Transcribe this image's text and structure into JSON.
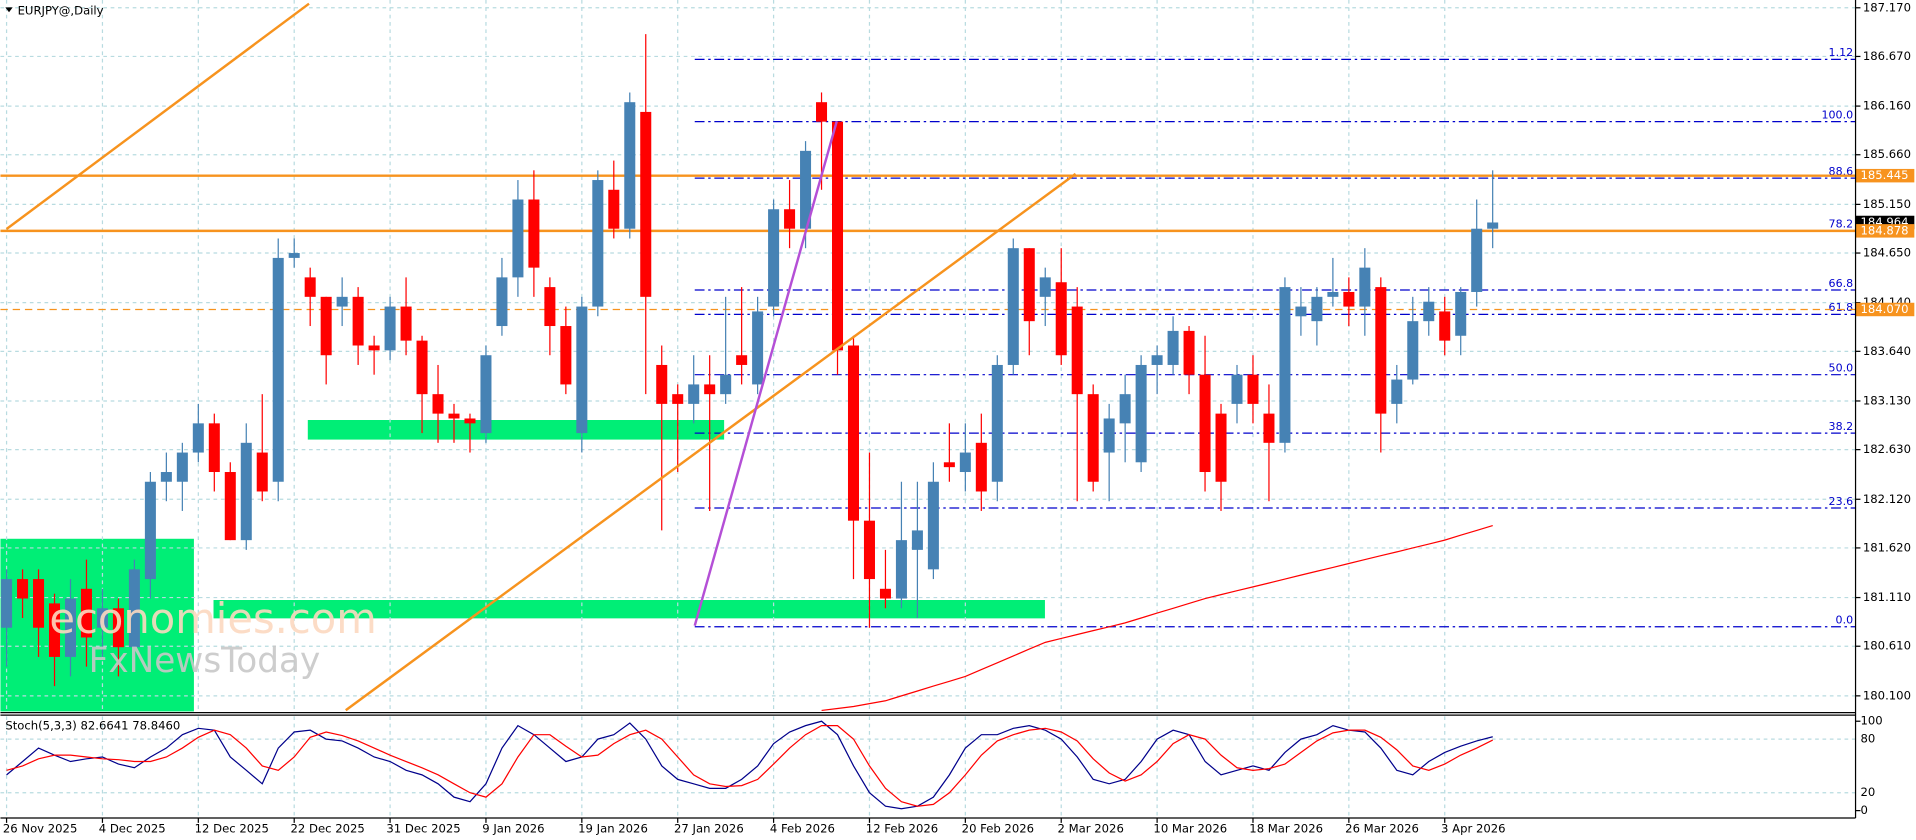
{
  "chart_data": {
    "type": "candlestick",
    "title": "EURJPY@,Daily",
    "watermark": [
      "economies.com",
      "FxNewsToday"
    ],
    "categories": [
      "26 Nov 2025",
      null,
      null,
      null,
      null,
      null,
      "4 Dec 2025",
      null,
      null,
      null,
      null,
      null,
      "12 Dec 2025",
      null,
      null,
      null,
      null,
      null,
      "22 Dec 2025",
      null,
      null,
      null,
      null,
      null,
      "31 Dec 2025",
      null,
      null,
      null,
      null,
      null,
      "9 Jan 2026",
      null,
      null,
      null,
      null,
      null,
      "19 Jan 2026",
      null,
      null,
      null,
      null,
      null,
      "27 Jan 2026",
      null,
      null,
      null,
      null,
      null,
      "4 Feb 2026",
      null,
      null,
      null,
      null,
      null,
      "12 Feb 2026",
      null,
      null,
      null,
      null,
      null,
      "20 Feb 2026",
      null,
      null,
      null,
      null,
      null,
      "2 Mar 2026",
      null,
      null,
      null,
      null,
      null,
      "10 Mar 2026",
      null,
      null,
      null,
      null,
      null,
      "18 Mar 2026",
      null,
      null,
      null,
      null,
      null,
      "26 Mar 2026",
      null,
      null,
      null,
      null,
      null,
      "3 Apr 2026",
      null,
      null,
      null
    ],
    "open": [
      180.8,
      181.3,
      181.3,
      181.05,
      180.5,
      181.2,
      180.8,
      181.0,
      180.6,
      181.3,
      182.3,
      182.3,
      182.6,
      182.9,
      182.4,
      181.7,
      182.6,
      182.3,
      184.6,
      184.4,
      184.2,
      184.1,
      184.2,
      183.7,
      183.65,
      184.1,
      183.75,
      183.2,
      183.0,
      182.95,
      182.8,
      183.9,
      184.4,
      185.2,
      184.3,
      183.9,
      182.8,
      184.1,
      185.3,
      184.9,
      186.1,
      183.5,
      183.2,
      183.1,
      183.3,
      183.2,
      183.6,
      183.3,
      184.1,
      185.1,
      184.9,
      186.2,
      186.0,
      183.7,
      181.9,
      181.2,
      181.1,
      181.6,
      181.4,
      182.5,
      182.4,
      182.7,
      182.3,
      183.5,
      184.7,
      184.2,
      184.35,
      184.1,
      183.2,
      182.6,
      182.9,
      182.5,
      183.5,
      183.5,
      183.85,
      183.4,
      183.0,
      183.1,
      183.4,
      183.0,
      182.7,
      184.0,
      183.95,
      184.2,
      184.25,
      184.1,
      184.3,
      183.1,
      183.35,
      183.95,
      184.05,
      183.8,
      184.25,
      184.9
    ],
    "high": [
      181.4,
      181.4,
      181.4,
      181.15,
      181.3,
      181.5,
      181.2,
      181.1,
      181.5,
      182.4,
      182.6,
      182.7,
      183.1,
      183.0,
      182.5,
      182.9,
      183.2,
      184.8,
      184.8,
      184.5,
      184.2,
      184.4,
      184.3,
      183.8,
      184.2,
      184.4,
      183.8,
      183.5,
      183.1,
      183.0,
      183.7,
      184.6,
      185.4,
      185.5,
      184.4,
      184.1,
      184.2,
      185.5,
      185.6,
      186.3,
      186.9,
      183.7,
      183.3,
      183.6,
      183.6,
      184.2,
      184.3,
      184.2,
      185.2,
      185.4,
      185.8,
      186.3,
      186.0,
      183.8,
      182.6,
      181.6,
      182.3,
      182.3,
      182.5,
      182.9,
      182.9,
      183.0,
      183.6,
      184.8,
      184.7,
      184.5,
      184.7,
      184.3,
      183.3,
      183.1,
      183.4,
      183.6,
      183.7,
      184.0,
      183.9,
      183.8,
      183.1,
      183.5,
      183.6,
      183.3,
      184.4,
      184.3,
      184.3,
      184.6,
      184.4,
      184.7,
      184.4,
      183.5,
      184.2,
      184.3,
      184.2,
      184.3,
      185.2,
      185.5
    ],
    "low": [
      180.4,
      180.9,
      180.5,
      180.2,
      180.3,
      180.4,
      180.5,
      180.3,
      180.5,
      181.1,
      182.1,
      182.0,
      182.5,
      182.2,
      181.7,
      181.6,
      182.1,
      182.1,
      184.5,
      183.9,
      183.3,
      183.9,
      183.5,
      183.4,
      183.55,
      183.6,
      182.8,
      182.7,
      182.7,
      182.6,
      182.7,
      183.8,
      184.2,
      184.2,
      183.6,
      183.2,
      182.6,
      184.0,
      184.8,
      184.8,
      183.2,
      181.8,
      182.4,
      182.9,
      182.0,
      183.1,
      183.3,
      183.2,
      184.0,
      184.7,
      184.7,
      185.3,
      183.4,
      181.3,
      180.8,
      181.0,
      181.0,
      180.9,
      181.3,
      182.3,
      182.2,
      182.0,
      182.1,
      183.4,
      183.6,
      183.9,
      183.5,
      182.1,
      182.2,
      182.1,
      182.5,
      182.4,
      183.2,
      183.4,
      183.2,
      182.2,
      182.0,
      182.9,
      182.9,
      182.1,
      182.6,
      183.8,
      183.7,
      184.1,
      183.9,
      183.8,
      182.6,
      182.9,
      183.3,
      183.8,
      183.6,
      183.6,
      184.1,
      184.7
    ],
    "close": [
      181.3,
      181.1,
      180.8,
      180.5,
      181.1,
      180.7,
      181.0,
      180.6,
      181.4,
      182.3,
      182.4,
      182.6,
      182.9,
      182.4,
      181.7,
      182.7,
      182.2,
      184.6,
      184.65,
      184.2,
      183.6,
      184.2,
      183.7,
      183.65,
      184.1,
      183.75,
      183.2,
      183.0,
      182.95,
      182.9,
      183.6,
      184.4,
      185.2,
      184.5,
      183.9,
      183.3,
      184.1,
      185.4,
      184.9,
      186.2,
      184.2,
      183.1,
      183.1,
      183.3,
      183.2,
      183.4,
      183.5,
      184.05,
      185.1,
      184.9,
      185.7,
      186.0,
      183.65,
      181.9,
      181.3,
      181.1,
      181.7,
      181.8,
      182.3,
      182.45,
      182.6,
      182.2,
      183.5,
      184.7,
      183.95,
      184.4,
      183.6,
      183.2,
      182.3,
      182.95,
      183.2,
      183.5,
      183.6,
      183.85,
      183.4,
      182.4,
      182.3,
      183.4,
      183.1,
      182.7,
      184.3,
      184.1,
      184.2,
      184.25,
      184.1,
      184.5,
      183.0,
      183.35,
      183.95,
      184.15,
      183.75,
      184.25,
      184.9,
      184.964
    ],
    "up_color": "#4682b4",
    "down_color": "#ff0000",
    "ma": {
      "color": "#ff0000",
      "values": [
        null,
        null,
        null,
        null,
        null,
        null,
        null,
        null,
        null,
        null,
        null,
        null,
        null,
        null,
        null,
        null,
        null,
        null,
        null,
        null,
        null,
        null,
        null,
        null,
        null,
        null,
        null,
        null,
        null,
        null,
        null,
        null,
        null,
        null,
        null,
        null,
        null,
        null,
        null,
        null,
        null,
        null,
        null,
        null,
        null,
        null,
        null,
        null,
        null,
        null,
        null,
        179.95,
        179.97,
        179.99,
        180.02,
        180.05,
        180.1,
        180.15,
        180.2,
        180.25,
        180.3,
        180.37,
        180.44,
        180.51,
        180.58,
        180.65,
        180.69,
        180.73,
        180.77,
        180.81,
        180.85,
        180.9,
        180.95,
        181.0,
        181.05,
        181.1,
        181.14,
        181.18,
        181.22,
        181.26,
        181.3,
        181.34,
        181.38,
        181.42,
        181.46,
        181.5,
        181.54,
        181.58,
        181.62,
        181.66,
        181.7,
        181.75,
        181.8,
        181.85
      ]
    },
    "ylim": [
      179.94,
      187.25
    ],
    "yticks": [
      {
        "value": 187.17,
        "label": "187.170"
      },
      {
        "value": 186.67,
        "label": "186.670"
      },
      {
        "value": 186.16,
        "label": "186.160"
      },
      {
        "value": 185.66,
        "label": "185.660"
      },
      {
        "value": 185.15,
        "label": "185.150"
      },
      {
        "value": 184.65,
        "label": "184.650"
      },
      {
        "value": 184.14,
        "label": "184.140"
      },
      {
        "value": 183.64,
        "label": "183.640"
      },
      {
        "value": 183.13,
        "label": "183.130"
      },
      {
        "value": 182.63,
        "label": "182.630"
      },
      {
        "value": 182.12,
        "label": "182.120"
      },
      {
        "value": 181.62,
        "label": "181.620"
      },
      {
        "value": 181.11,
        "label": "181.110"
      },
      {
        "value": 180.61,
        "label": "180.610"
      },
      {
        "value": 180.1,
        "label": "180.100"
      }
    ],
    "grid": true,
    "price_tags": [
      {
        "value": 185.445,
        "label": "185.445",
        "color": "#f7931e",
        "line": "solid"
      },
      {
        "value": 184.964,
        "label": "184.964",
        "color": "#000000",
        "line": "none"
      },
      {
        "value": 184.878,
        "label": "184.878",
        "color": "#f7931e",
        "line": "solid"
      },
      {
        "value": 184.07,
        "label": "184.070",
        "color": "#f7931e",
        "line": "dashed"
      }
    ],
    "fib": {
      "color": "#0000cc",
      "levels": [
        {
          "label": "1.12",
          "value": 186.64
        },
        {
          "label": "100.0",
          "value": 186.0
        },
        {
          "label": "88.6",
          "value": 185.42
        },
        {
          "label": "78.2",
          "value": 184.88
        },
        {
          "label": "66.8",
          "value": 184.27
        },
        {
          "label": "61.8",
          "value": 184.02
        },
        {
          "label": "50.0",
          "value": 183.4
        },
        {
          "label": "38.2",
          "value": 182.8
        },
        {
          "label": "23.6",
          "value": 182.03
        },
        {
          "label": "0.0",
          "value": 180.81
        }
      ]
    },
    "stoch": {
      "title": "Stoch(5,3,3) 82.6641 78.8460",
      "ylim": [
        0,
        100
      ],
      "yticks": [
        100,
        80,
        20,
        0
      ],
      "series": [
        {
          "color": "#00008b",
          "values": [
            40,
            55,
            70,
            62,
            55,
            58,
            60,
            52,
            48,
            60,
            70,
            85,
            92,
            90,
            60,
            45,
            30,
            70,
            88,
            90,
            80,
            78,
            70,
            60,
            55,
            45,
            40,
            30,
            15,
            10,
            30,
            70,
            95,
            85,
            70,
            55,
            60,
            80,
            85,
            98,
            80,
            50,
            35,
            30,
            25,
            25,
            35,
            50,
            75,
            88,
            95,
            100,
            85,
            50,
            20,
            5,
            2,
            5,
            15,
            40,
            70,
            85,
            85,
            92,
            95,
            90,
            80,
            60,
            35,
            30,
            35,
            55,
            80,
            90,
            85,
            55,
            40,
            45,
            50,
            45,
            65,
            80,
            85,
            95,
            90,
            88,
            70,
            45,
            40,
            55,
            65,
            72,
            78,
            82.6641
          ]
        },
        {
          "color": "#ff0000",
          "values": [
            45,
            50,
            58,
            62,
            62,
            60,
            58,
            57,
            55,
            55,
            60,
            70,
            82,
            90,
            85,
            70,
            50,
            45,
            60,
            82,
            88,
            84,
            78,
            70,
            62,
            55,
            48,
            40,
            30,
            20,
            15,
            30,
            60,
            85,
            85,
            72,
            60,
            62,
            75,
            85,
            90,
            80,
            60,
            40,
            30,
            27,
            28,
            35,
            52,
            70,
            85,
            95,
            95,
            80,
            50,
            25,
            10,
            5,
            7,
            20,
            40,
            62,
            78,
            85,
            90,
            92,
            88,
            78,
            58,
            42,
            33,
            40,
            55,
            75,
            85,
            80,
            62,
            48,
            45,
            47,
            52,
            65,
            78,
            87,
            90,
            90,
            82,
            68,
            50,
            45,
            52,
            62,
            70,
            78.846
          ]
        }
      ]
    }
  }
}
